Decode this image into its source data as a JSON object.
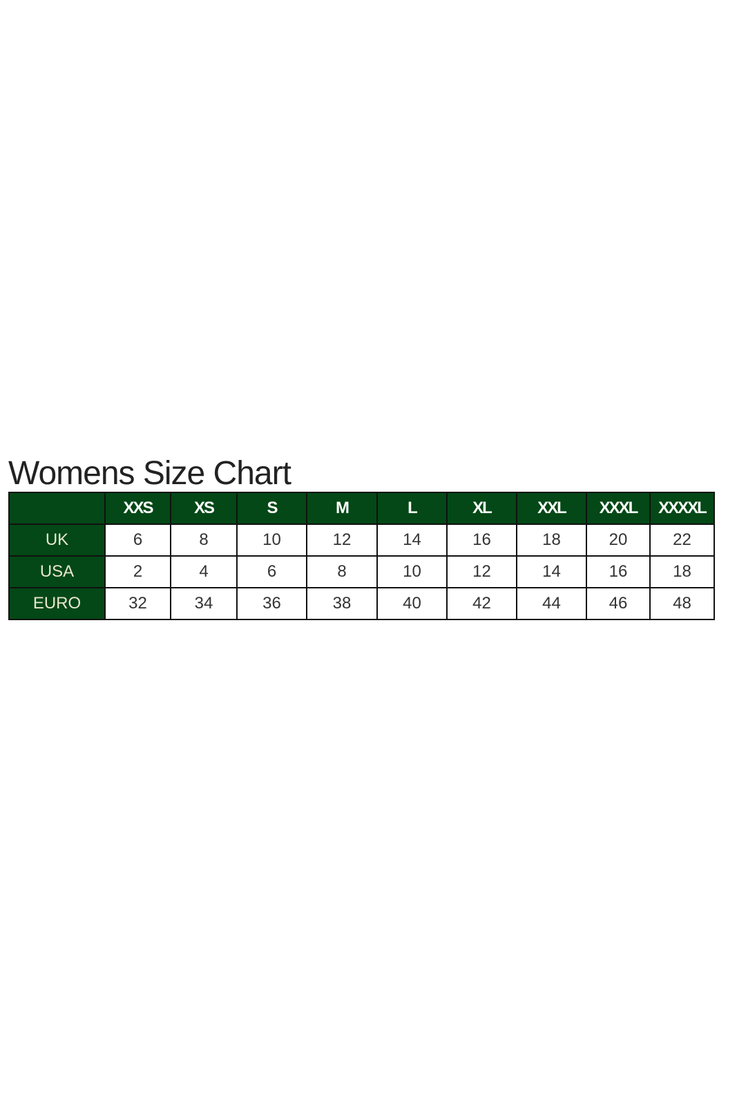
{
  "title": "Womens Size Chart",
  "colors": {
    "header_bg": "#034816",
    "header_text": "#ffffff",
    "border": "#111111"
  },
  "table": {
    "columns": [
      "",
      "XXS",
      "XS",
      "S",
      "M",
      "L",
      "XL",
      "XXL",
      "XXXL",
      "XXXXL"
    ],
    "rows": [
      {
        "label": "UK",
        "values": [
          "6",
          "8",
          "10",
          "12",
          "14",
          "16",
          "18",
          "20",
          "22"
        ]
      },
      {
        "label": "USA",
        "values": [
          "2",
          "4",
          "6",
          "8",
          "10",
          "12",
          "14",
          "16",
          "18"
        ]
      },
      {
        "label": "EURO",
        "values": [
          "32",
          "34",
          "36",
          "38",
          "40",
          "42",
          "44",
          "46",
          "48"
        ]
      }
    ]
  }
}
